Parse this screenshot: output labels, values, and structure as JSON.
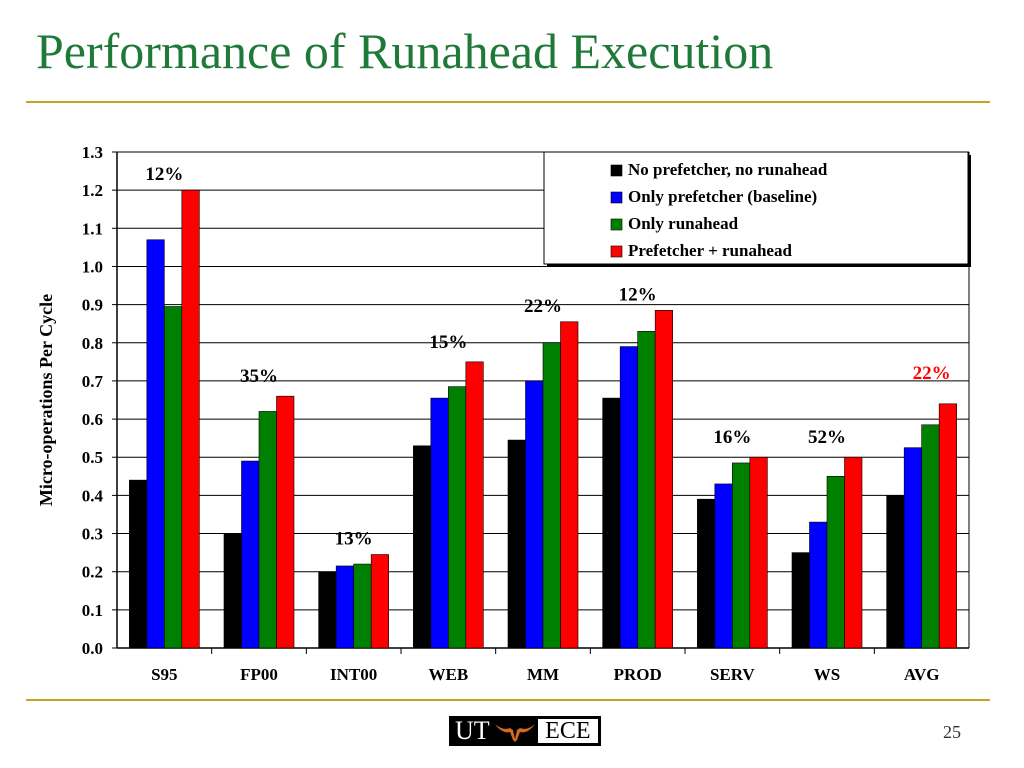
{
  "slide": {
    "title": "Performance of Runahead Execution",
    "page_number": "25",
    "logo": {
      "left_text": "UT",
      "right_text": "ECE",
      "icon": "longhorn-icon"
    }
  },
  "colors": {
    "title": "#1f7a3a",
    "rule": "#c9a227",
    "highlight_annotation": "#ff0000"
  },
  "chart_data": {
    "type": "bar",
    "title": "",
    "xlabel": "",
    "ylabel": "Micro-operations Per Cycle",
    "ylim": [
      0,
      1.3
    ],
    "yticks": [
      "0.0",
      "0.1",
      "0.2",
      "0.3",
      "0.4",
      "0.5",
      "0.6",
      "0.7",
      "0.8",
      "0.9",
      "1.0",
      "1.1",
      "1.2",
      "1.3"
    ],
    "grid": true,
    "legend_position": "top-right",
    "categories": [
      "S95",
      "FP00",
      "INT00",
      "WEB",
      "MM",
      "PROD",
      "SERV",
      "WS",
      "AVG"
    ],
    "series": [
      {
        "name": "No prefetcher, no runahead",
        "color": "#000000",
        "values": [
          0.44,
          0.3,
          0.2,
          0.53,
          0.545,
          0.655,
          0.39,
          0.25,
          0.4
        ]
      },
      {
        "name": "Only prefetcher (baseline)",
        "color": "#0000ff",
        "values": [
          1.07,
          0.49,
          0.215,
          0.655,
          0.7,
          0.79,
          0.43,
          0.33,
          0.525
        ]
      },
      {
        "name": "Only runahead",
        "color": "#008000",
        "values": [
          0.895,
          0.62,
          0.22,
          0.685,
          0.8,
          0.83,
          0.485,
          0.45,
          0.585
        ]
      },
      {
        "name": "Prefetcher + runahead",
        "color": "#ff0000",
        "values": [
          1.2,
          0.66,
          0.245,
          0.75,
          0.855,
          0.885,
          0.5,
          0.5,
          0.64
        ]
      }
    ],
    "annotations": [
      {
        "category": "S95",
        "text": "12%",
        "highlight": false
      },
      {
        "category": "FP00",
        "text": "35%",
        "highlight": false
      },
      {
        "category": "INT00",
        "text": "13%",
        "highlight": false
      },
      {
        "category": "WEB",
        "text": "15%",
        "highlight": false
      },
      {
        "category": "MM",
        "text": "22%",
        "highlight": false
      },
      {
        "category": "PROD",
        "text": "12%",
        "highlight": false
      },
      {
        "category": "SERV",
        "text": "16%",
        "highlight": false
      },
      {
        "category": "WS",
        "text": "52%",
        "highlight": false
      },
      {
        "category": "AVG",
        "text": "22%",
        "highlight": true
      }
    ]
  }
}
